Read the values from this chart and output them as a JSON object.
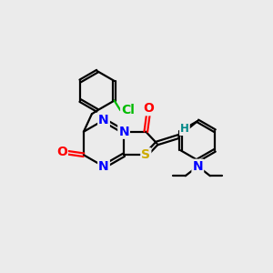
{
  "bg_color": "#ebebeb",
  "atom_colors": {
    "N": "#0000ff",
    "O": "#ff0000",
    "S": "#ccaa00",
    "Cl": "#00bb00",
    "H": "#008888",
    "C": "#000000"
  },
  "bond_color": "#000000",
  "bond_width": 1.6,
  "font_size_atom": 10,
  "font_size_small": 8.5,
  "figsize": [
    3.0,
    3.0
  ],
  "dpi": 100
}
